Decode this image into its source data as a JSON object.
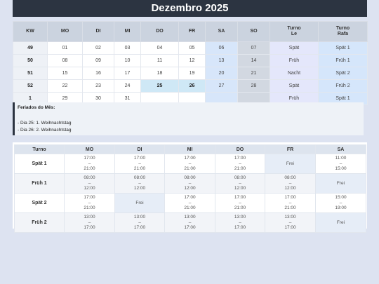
{
  "title": "Dezembro 2025",
  "calendar": {
    "headers": [
      "KW",
      "MO",
      "DI",
      "MI",
      "DO",
      "FR",
      "SA",
      "SO",
      "Turno\nLe",
      "Turno\nRafa"
    ],
    "rows": [
      [
        "49",
        "01",
        "02",
        "03",
        "04",
        "05",
        "06",
        "07",
        "Spät",
        "Spät 1"
      ],
      [
        "50",
        "08",
        "09",
        "10",
        "11",
        "12",
        "13",
        "14",
        "Früh",
        "Früh 1"
      ],
      [
        "51",
        "15",
        "16",
        "17",
        "18",
        "19",
        "20",
        "21",
        "Nacht",
        "Spät 2"
      ],
      [
        "52",
        "22",
        "23",
        "24",
        "25",
        "26",
        "27",
        "28",
        "Spät",
        "Früh 2"
      ],
      [
        "1",
        "29",
        "30",
        "31",
        "",
        "",
        "",
        "",
        "Früh",
        "Spät 1"
      ]
    ],
    "holiday_days": [
      "25",
      "26"
    ]
  },
  "holidays": {
    "title": "Feriados do Mês:",
    "items": [
      "- Dia 25: 1. Weihnachtstag",
      "- Dia 26: 2. Weihnachtstag"
    ]
  },
  "shifts": {
    "headers": [
      "Turno",
      "MO",
      "DI",
      "MI",
      "DO",
      "FR",
      "SA"
    ],
    "rows": [
      {
        "name": "Spät 1",
        "cells": [
          [
            "17:00",
            "–",
            "21:00"
          ],
          [
            "17:00",
            "–",
            "21:00"
          ],
          [
            "17:00",
            "–",
            "21:00"
          ],
          [
            "17:00",
            "–",
            "21:00"
          ],
          [
            "Frei"
          ],
          [
            "11:00",
            "–",
            "15:00"
          ]
        ]
      },
      {
        "name": "Früh 1",
        "cells": [
          [
            "08:00",
            "–",
            "12:00"
          ],
          [
            "08:00",
            "–",
            "12:00"
          ],
          [
            "08:00",
            "–",
            "12:00"
          ],
          [
            "08:00",
            "–",
            "12:00"
          ],
          [
            "08:00",
            "–",
            "12:00"
          ],
          [
            "Frei"
          ]
        ]
      },
      {
        "name": "Spät 2",
        "cells": [
          [
            "17:00",
            "–",
            "21:00"
          ],
          [
            "Frei"
          ],
          [
            "17:00",
            "–",
            "21:00"
          ],
          [
            "17:00",
            "–",
            "21:00"
          ],
          [
            "17:00",
            "–",
            "21:00"
          ],
          [
            "15:00",
            "–",
            "19:00"
          ]
        ]
      },
      {
        "name": "Früh 2",
        "cells": [
          [
            "13:00",
            "–",
            "17:00"
          ],
          [
            "13:00",
            "–",
            "17:00"
          ],
          [
            "13:00",
            "–",
            "17:00"
          ],
          [
            "13:00",
            "–",
            "17:00"
          ],
          [
            "13:00",
            "–",
            "17:00"
          ],
          [
            "Frei"
          ]
        ]
      }
    ]
  }
}
